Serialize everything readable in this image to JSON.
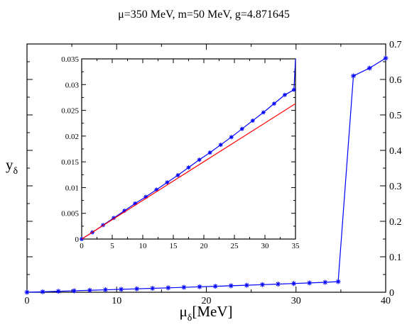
{
  "chart_data": {
    "type": "line",
    "title": "μ=350 MeV, m=50 MeV, g=4.871645",
    "xlabel": {
      "main": "μ",
      "sub": "δ",
      "tail": "[MeV]"
    },
    "ylabel": {
      "main": "y",
      "sub": "δ"
    },
    "xlim": [
      0,
      40
    ],
    "ylim": [
      0,
      0.7
    ],
    "y_axis_side": "right",
    "grid": false,
    "legend": "none",
    "x_ticks": [
      "0",
      "10",
      "20",
      "30",
      "40"
    ],
    "y_ticks": [
      "0",
      "0.1",
      "0.2",
      "0.3",
      "0.4",
      "0.5",
      "0.6",
      "0.7"
    ],
    "colors": {
      "main_series": "#0000ff",
      "linear_fit": "#ff0000",
      "axes": "#000000"
    },
    "series": [
      {
        "marker": "asterisk",
        "color": "#0000ff",
        "x": [
          0,
          1.75,
          3.5,
          5.25,
          7,
          8.75,
          10.5,
          12.25,
          14,
          15.75,
          17.5,
          19.25,
          21,
          22.75,
          24.5,
          26.25,
          28,
          29.75,
          31.5,
          33.25,
          34.7,
          36.4,
          38.2,
          40
        ],
        "y": [
          0,
          0.0013,
          0.0027,
          0.0041,
          0.0055,
          0.0069,
          0.0082,
          0.0096,
          0.011,
          0.0124,
          0.0139,
          0.0154,
          0.0168,
          0.0183,
          0.0198,
          0.0214,
          0.023,
          0.0246,
          0.0263,
          0.028,
          0.03,
          0.61,
          0.632,
          0.66
        ]
      }
    ],
    "inset": {
      "type": "line",
      "xlim": [
        0,
        35
      ],
      "ylim": [
        0,
        0.035
      ],
      "x_ticks": [
        "0",
        "5",
        "10",
        "15",
        "20",
        "25",
        "30",
        "35"
      ],
      "y_ticks": [
        "0",
        "0.005",
        "0.01",
        "0.015",
        "0.02",
        "0.025",
        "0.03",
        "0.035"
      ],
      "series": [
        {
          "marker": "asterisk",
          "color": "#0000ff",
          "x": [
            0,
            1.75,
            3.5,
            5.25,
            7,
            8.75,
            10.5,
            12.25,
            14,
            15.75,
            17.5,
            19.25,
            21,
            22.75,
            24.5,
            26.25,
            28,
            29.75,
            31.5,
            33.25,
            34.75,
            35
          ],
          "y": [
            0,
            0.0013,
            0.0027,
            0.0041,
            0.0055,
            0.0069,
            0.0082,
            0.0096,
            0.011,
            0.0124,
            0.0139,
            0.0154,
            0.0168,
            0.0183,
            0.0198,
            0.0214,
            0.023,
            0.0246,
            0.0263,
            0.028,
            0.029,
            0.035
          ]
        },
        {
          "marker": "none",
          "color": "#ff0000",
          "x": [
            0,
            35
          ],
          "y": [
            0,
            0.0263
          ]
        }
      ]
    }
  }
}
